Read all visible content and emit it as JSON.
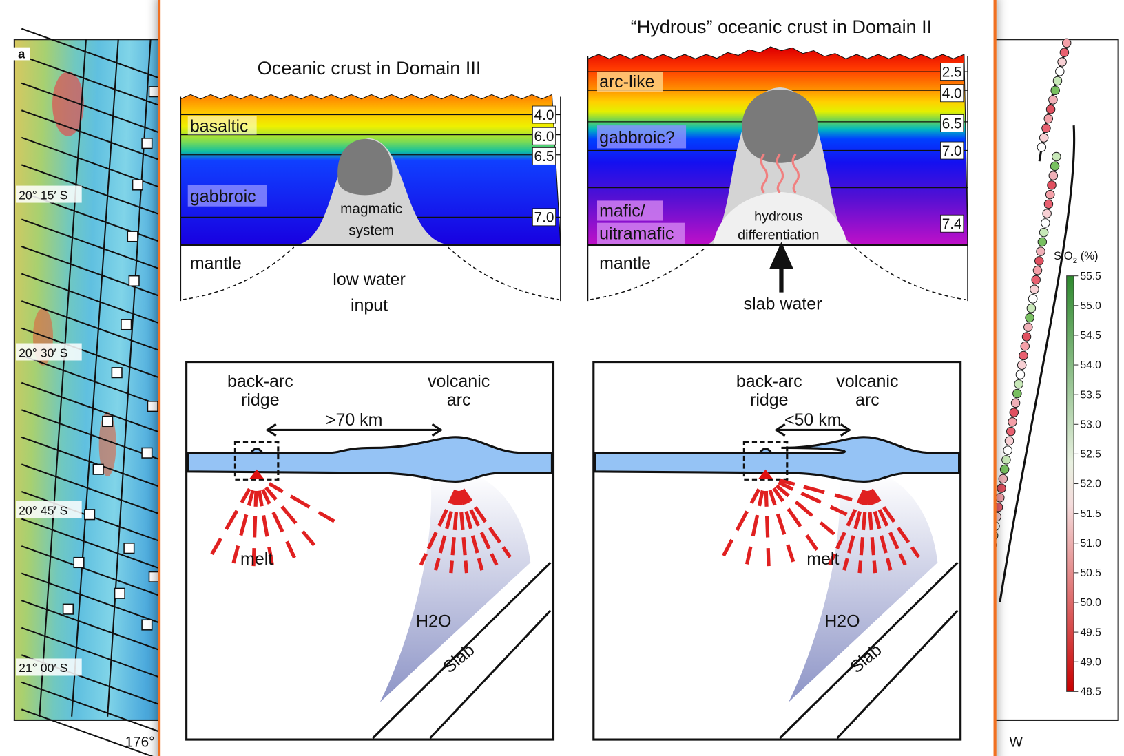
{
  "map": {
    "panel_label": "a",
    "lat_labels": [
      "20° 15′ S",
      "20° 30′ S",
      "20° 45′ S",
      "21° 00′ S"
    ],
    "lon_label": "176°",
    "lon_label_right": "W"
  },
  "colorbar": {
    "title": {
      "text": "SiO",
      "subscript": "2",
      "unit": " (%)"
    },
    "ticks": [
      "55.5",
      "55.0",
      "54.5",
      "54.0",
      "53.5",
      "53.0",
      "52.5",
      "52.0",
      "51.5",
      "51.0",
      "50.5",
      "50.0",
      "49.5",
      "49.0",
      "48.5"
    ]
  },
  "overlay": {
    "top_left": {
      "title": "Oceanic crust in Domain III",
      "layers": [
        "basaltic",
        "gabbroic"
      ],
      "velocities": [
        "4.0",
        "6.0",
        "6.5",
        "7.0"
      ],
      "intrusion": [
        "magmatic",
        "system"
      ],
      "mantle": "mantle",
      "input": [
        "low water",
        "input"
      ]
    },
    "top_right": {
      "title": "“Hydrous” oceanic crust in Domain II",
      "layers": [
        "arc-like",
        "gabbroic?",
        "mafic/",
        "uitramafic"
      ],
      "velocities": [
        "2.5",
        "4.0",
        "6.5",
        "7.0",
        "7.4"
      ],
      "intrusion": [
        "hydrous",
        "differentiation"
      ],
      "mantle": "mantle",
      "input": "slab water"
    },
    "bottom_left": {
      "ridge": [
        "back-arc",
        "ridge"
      ],
      "arc": [
        "volcanic",
        "arc"
      ],
      "distance": ">70 km",
      "melt": "melt",
      "water": "H2O",
      "slab": "Slab"
    },
    "bottom_right": {
      "ridge": [
        "back-arc",
        "ridge"
      ],
      "arc": [
        "volcanic",
        "arc"
      ],
      "distance": "<50 km",
      "melt": "melt",
      "water": "H2O",
      "slab": "Slab"
    }
  }
}
